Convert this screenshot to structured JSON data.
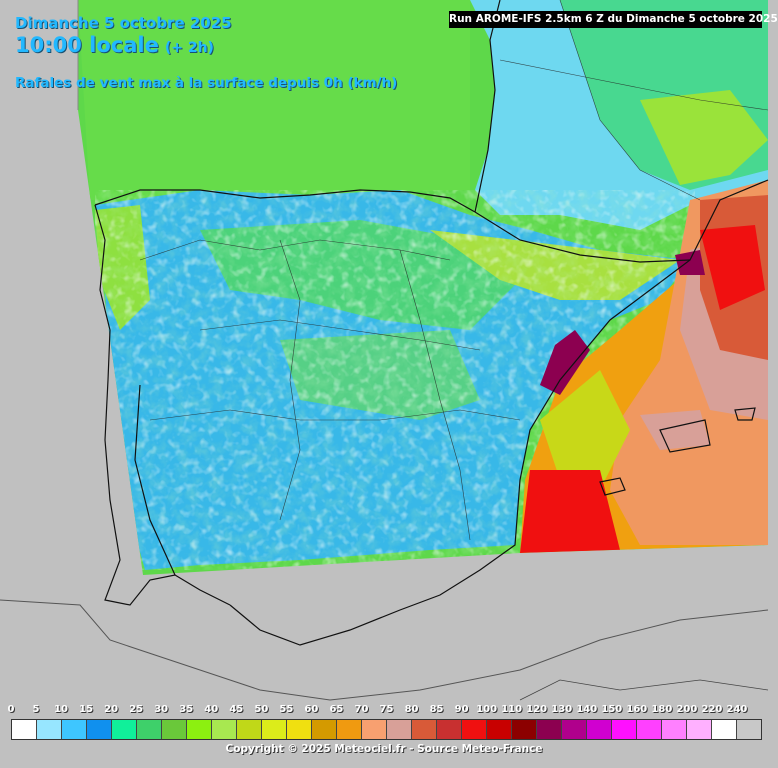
{
  "header": {
    "date": "Dimanche 5 octobre 2025",
    "time": "10:00 locale",
    "lead": "(+ 2h)",
    "parameter": "Rafales de vent max à la surface depuis 0h (km/h)"
  },
  "run": "Run AROME-IFS 2.5km 6 Z du Dimanche 5 octobre 2025",
  "legend": {
    "labels": [
      "0",
      "5",
      "10",
      "15",
      "20",
      "25",
      "30",
      "35",
      "40",
      "45",
      "50",
      "55",
      "60",
      "65",
      "70",
      "75",
      "80",
      "85",
      "90",
      "100",
      "110",
      "120",
      "130",
      "140",
      "150",
      "160",
      "180",
      "200",
      "220",
      "240"
    ],
    "colors": [
      "#ffffff",
      "#97e6ff",
      "#3ec6ff",
      "#1090ee",
      "#10f09a",
      "#3ed06a",
      "#6ac83a",
      "#8cf010",
      "#a8e850",
      "#c0d818",
      "#dcec1a",
      "#f0e010",
      "#d49a00",
      "#f09a10",
      "#f8a070",
      "#d8a098",
      "#d85a38",
      "#c83030",
      "#f01010",
      "#c80000",
      "#8c0000",
      "#8c0050",
      "#b0008c",
      "#d000d0",
      "#ff10ff",
      "#ff40ff",
      "#ff80ff",
      "#ffb0ff",
      "#ffffff",
      "#c8c8c8"
    ]
  },
  "copyright": "Copyright © 2025 Meteociel.fr - Source Meteo-France",
  "colors": {
    "title_blue": "#22b8ff",
    "background_gray": "#c0c0c0",
    "sea_green": "#5ed84a"
  }
}
